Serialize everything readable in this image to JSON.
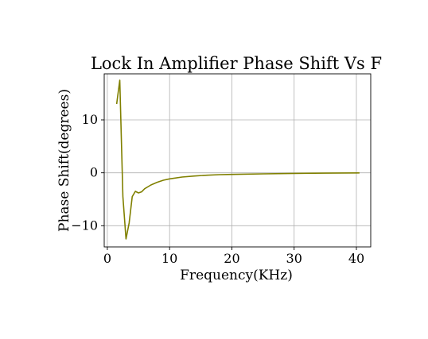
{
  "chart_data": {
    "type": "line",
    "title": "Lock In Amplifier Phase Shift Vs F",
    "xlabel": "Frequency(KHz)",
    "ylabel": "Phase Shift(degrees)",
    "xlim": [
      -0.5,
      42.3
    ],
    "ylim": [
      -14.0,
      18.7
    ],
    "xticks": [
      0,
      10,
      20,
      30,
      40
    ],
    "xtick_labels": [
      "0",
      "10",
      "20",
      "30",
      "40"
    ],
    "yticks": [
      -10,
      0,
      10
    ],
    "ytick_labels": [
      "−10",
      "0",
      "10"
    ],
    "grid": true,
    "series": [
      {
        "color": "#808000",
        "x": [
          1.5,
          2.0,
          2.5,
          3.0,
          3.5,
          4.0,
          4.5,
          5.0,
          5.5,
          6.0,
          7.0,
          8.0,
          9.0,
          10.0,
          12.0,
          14.0,
          16.0,
          18.0,
          20.0,
          25.0,
          30.0,
          35.0,
          40.5
        ],
        "y": [
          13.0,
          17.5,
          -4.5,
          -12.5,
          -9.5,
          -4.5,
          -3.5,
          -3.8,
          -3.6,
          -3.0,
          -2.3,
          -1.8,
          -1.4,
          -1.15,
          -0.8,
          -0.6,
          -0.45,
          -0.35,
          -0.3,
          -0.2,
          -0.12,
          -0.06,
          -0.02
        ]
      }
    ]
  }
}
